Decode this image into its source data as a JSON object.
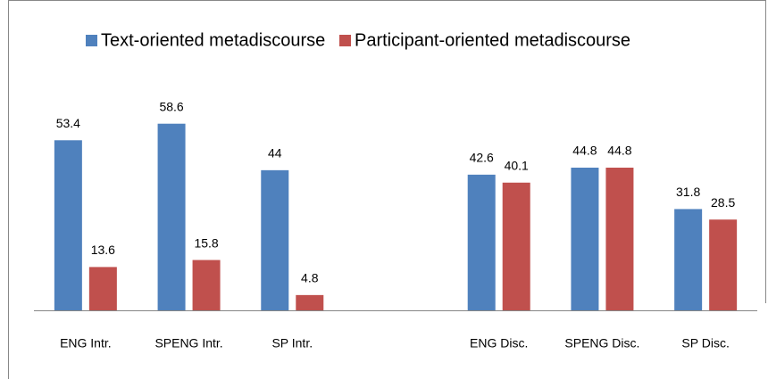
{
  "chart_data": {
    "type": "bar",
    "categories": [
      "ENG Intr.",
      "SPENG Intr.",
      "SP Intr.",
      null,
      "ENG Disc.",
      "SPENG Disc.",
      "SP Disc."
    ],
    "series": [
      {
        "name": "Text-oriented metadiscourse",
        "color": "#4f81bd",
        "values": [
          53.4,
          58.6,
          44,
          null,
          42.6,
          44.8,
          31.8
        ]
      },
      {
        "name": "Participant-oriented metadiscourse",
        "color": "#c0504d",
        "values": [
          13.6,
          15.8,
          4.8,
          null,
          40.1,
          44.8,
          28.5
        ]
      }
    ],
    "ylim": [
      0,
      70
    ],
    "legend": "top"
  }
}
